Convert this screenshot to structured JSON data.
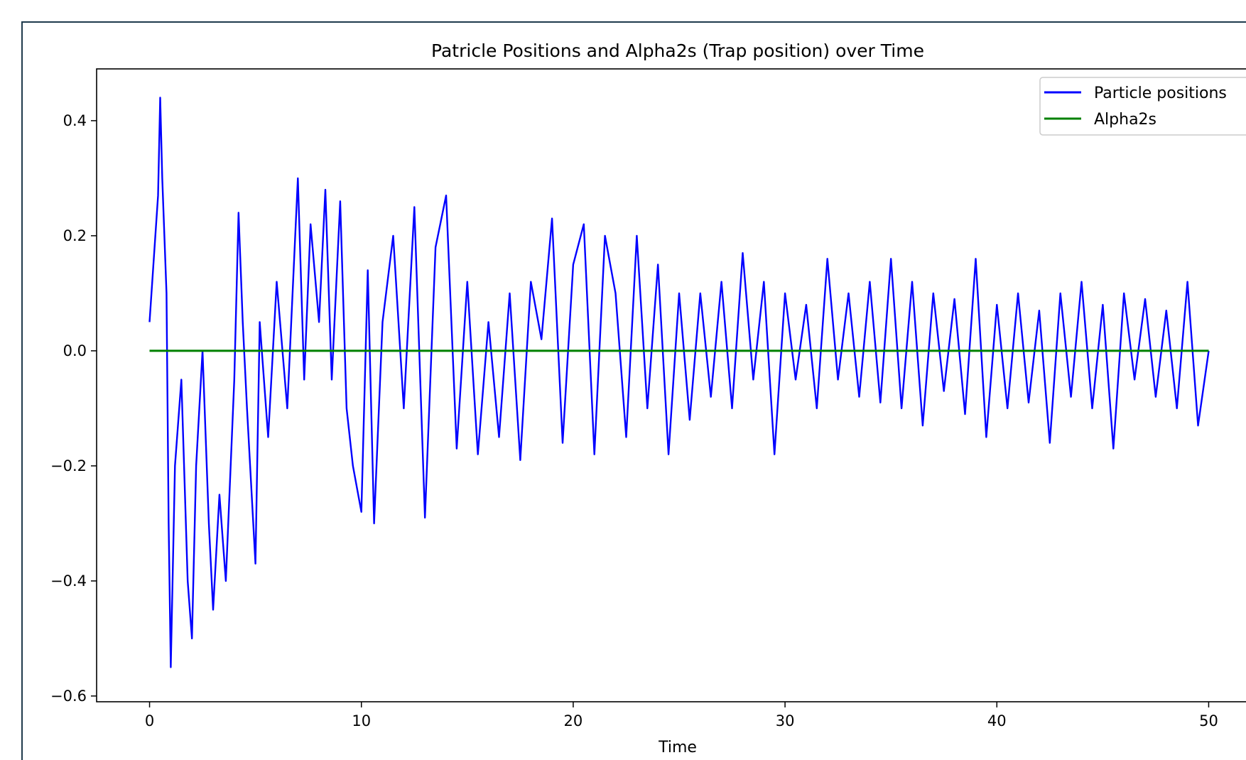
{
  "chart_data": {
    "type": "line",
    "title": "Patricle Positions and Alpha2s (Trap position) over Time",
    "xlabel": "Time",
    "ylabel": "",
    "xlim": [
      -2.5,
      52.5
    ],
    "ylim": [
      -0.61,
      0.49
    ],
    "x_ticks": [
      0,
      10,
      20,
      30,
      40,
      50
    ],
    "x_tick_labels": [
      "0",
      "10",
      "20",
      "30",
      "40",
      "50"
    ],
    "y_ticks": [
      0.4,
      0.2,
      0.0,
      -0.2,
      -0.4,
      -0.6
    ],
    "y_tick_labels": [
      "0.4",
      "0.2",
      "0.0",
      "−0.2",
      "−0.4",
      "−0.6"
    ],
    "grid": false,
    "legend_position": "top-right",
    "series": [
      {
        "name": "Particle positions",
        "color": "#0000ff",
        "x": [
          0,
          0.4,
          0.5,
          0.6,
          0.8,
          0.9,
          1.0,
          1.2,
          1.5,
          1.8,
          2.0,
          2.2,
          2.5,
          2.8,
          3.0,
          3.3,
          3.6,
          4.0,
          4.2,
          4.4,
          4.6,
          5.0,
          5.2,
          5.6,
          6.0,
          6.5,
          7.0,
          7.3,
          7.6,
          8.0,
          8.3,
          8.6,
          9.0,
          9.3,
          9.6,
          10.0,
          10.3,
          10.6,
          11.0,
          11.5,
          12.0,
          12.5,
          13.0,
          13.5,
          14.0,
          14.5,
          15.0,
          15.5,
          16.0,
          16.5,
          17.0,
          17.5,
          18.0,
          18.5,
          19.0,
          19.5,
          20.0,
          20.5,
          21.0,
          21.5,
          22.0,
          22.5,
          23.0,
          23.5,
          24.0,
          24.5,
          25.0,
          25.5,
          26.0,
          26.5,
          27.0,
          27.5,
          28.0,
          28.5,
          29.0,
          29.5,
          30.0,
          30.5,
          31.0,
          31.5,
          32.0,
          32.5,
          33.0,
          33.5,
          34.0,
          34.5,
          35.0,
          35.5,
          36.0,
          36.5,
          37.0,
          37.5,
          38.0,
          38.5,
          39.0,
          39.5,
          40.0,
          40.5,
          41.0,
          41.5,
          42.0,
          42.5,
          43.0,
          43.5,
          44.0,
          44.5,
          45.0,
          45.5,
          46.0,
          46.5,
          47.0,
          47.5,
          48.0,
          48.5,
          49.0,
          49.5,
          50.0
        ],
        "y": [
          0.05,
          0.27,
          0.44,
          0.3,
          0.1,
          -0.3,
          -0.55,
          -0.2,
          -0.05,
          -0.4,
          -0.5,
          -0.2,
          0.0,
          -0.3,
          -0.45,
          -0.25,
          -0.4,
          -0.05,
          0.24,
          0.05,
          -0.1,
          -0.37,
          0.05,
          -0.15,
          0.12,
          -0.1,
          0.3,
          -0.05,
          0.22,
          0.05,
          0.28,
          -0.05,
          0.26,
          -0.1,
          -0.2,
          -0.28,
          0.14,
          -0.3,
          0.05,
          0.2,
          -0.1,
          0.25,
          -0.29,
          0.18,
          0.27,
          -0.17,
          0.12,
          -0.18,
          0.05,
          -0.15,
          0.1,
          -0.19,
          0.12,
          0.02,
          0.23,
          -0.16,
          0.15,
          0.22,
          -0.18,
          0.2,
          0.1,
          -0.15,
          0.2,
          -0.1,
          0.15,
          -0.18,
          0.1,
          -0.12,
          0.1,
          -0.08,
          0.12,
          -0.1,
          0.17,
          -0.05,
          0.12,
          -0.18,
          0.1,
          -0.05,
          0.08,
          -0.1,
          0.16,
          -0.05,
          0.1,
          -0.08,
          0.12,
          -0.09,
          0.16,
          -0.1,
          0.12,
          -0.13,
          0.1,
          -0.07,
          0.09,
          -0.11,
          0.16,
          -0.15,
          0.08,
          -0.1,
          0.1,
          -0.09,
          0.07,
          -0.16,
          0.1,
          -0.08,
          0.12,
          -0.1,
          0.08,
          -0.17,
          0.1,
          -0.05,
          0.09,
          -0.08,
          0.07,
          -0.1,
          0.12,
          -0.13,
          0.0
        ]
      },
      {
        "name": "Alpha2s",
        "color": "#008000",
        "x": [
          0,
          50
        ],
        "y": [
          0.0,
          0.0
        ]
      }
    ]
  }
}
